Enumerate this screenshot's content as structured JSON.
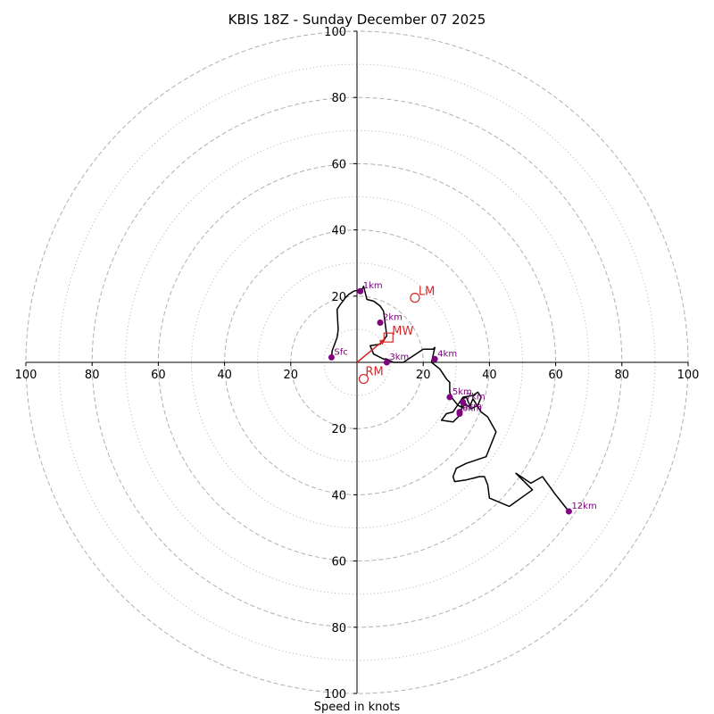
{
  "chart_data": {
    "type": "hodograph",
    "title": "KBIS 18Z - Sunday December 07 2025",
    "xlabel": "Speed in knots",
    "range": 100,
    "ring_major": [
      20,
      40,
      60,
      80,
      100
    ],
    "ring_minor": [
      10,
      30,
      50,
      70,
      90
    ],
    "axis_ticks": {
      "x": [
        {
          "pos": -100,
          "label": "100"
        },
        {
          "pos": -80,
          "label": "80"
        },
        {
          "pos": -60,
          "label": "60"
        },
        {
          "pos": -40,
          "label": "40"
        },
        {
          "pos": -20,
          "label": "20"
        },
        {
          "pos": 20,
          "label": "20"
        },
        {
          "pos": 40,
          "label": "40"
        },
        {
          "pos": 60,
          "label": "60"
        },
        {
          "pos": 80,
          "label": "80"
        },
        {
          "pos": 100,
          "label": "100"
        }
      ],
      "y": [
        {
          "pos": 100,
          "label": "100"
        },
        {
          "pos": 80,
          "label": "80"
        },
        {
          "pos": 60,
          "label": "60"
        },
        {
          "pos": 40,
          "label": "40"
        },
        {
          "pos": 20,
          "label": "20"
        },
        {
          "pos": -20,
          "label": "20"
        },
        {
          "pos": -40,
          "label": "40"
        },
        {
          "pos": -60,
          "label": "60"
        },
        {
          "pos": -80,
          "label": "80"
        },
        {
          "pos": -100,
          "label": "100"
        }
      ]
    },
    "trace": {
      "u": [
        -7.7,
        -7.5,
        -6.0,
        -5.8,
        -5.7,
        -6.0,
        -5.0,
        -3.5,
        -2.5,
        -1.0,
        1.5,
        2.0,
        3.0,
        5.0,
        7.0,
        8.0,
        9.0,
        7.0,
        4.0,
        5.0,
        7.0,
        8.0,
        9.0,
        11.0,
        14.0,
        17.0,
        20.0,
        23.0,
        23.5,
        22.5,
        25.0,
        27.0,
        28.0,
        28.0,
        28.5,
        30.5,
        31.5,
        32.0,
        33.0,
        34.5,
        36.5,
        37.5,
        36.5,
        35.0,
        32.0,
        31.0,
        29.0,
        27.0,
        25.5,
        29.0,
        30.0,
        31.5,
        31.0,
        32.5,
        34.0,
        35.0,
        37.5,
        39.5,
        42.0,
        39.0,
        33.0,
        30.0,
        29.0,
        29.5,
        33.0,
        35.0,
        37.0,
        38.5,
        39.5,
        40.0,
        46.0,
        53.0,
        48.0,
        52.5,
        56.0,
        60.0,
        64.0
      ],
      "v": [
        1.5,
        3.5,
        7.5,
        9.0,
        10.0,
        16.0,
        17.5,
        19.5,
        20.5,
        21.5,
        22.0,
        23.0,
        19.0,
        18.5,
        17.0,
        15.5,
        8.0,
        5.5,
        5.0,
        2.5,
        1.5,
        1.0,
        1.0,
        0.0,
        0.0,
        2.0,
        4.0,
        4.0,
        4.5,
        0.0,
        -2.0,
        -5.0,
        -6.0,
        -9.0,
        -10.5,
        -13.0,
        -13.5,
        -11.0,
        -10.5,
        -14.0,
        -13.0,
        -10.5,
        -9.0,
        -10.0,
        -10.5,
        -12.0,
        -15.0,
        -15.5,
        -17.5,
        -18.0,
        -17.0,
        -15.5,
        -15.0,
        -12.5,
        -13.5,
        -11.0,
        -15.0,
        -16.5,
        -21.0,
        -28.5,
        -30.5,
        -32.0,
        -34.5,
        -36.0,
        -35.5,
        -35.0,
        -34.5,
        -34.5,
        -37.0,
        -41.0,
        -43.5,
        -38.5,
        -33.5,
        -36.5,
        -34.5,
        -40.0,
        -45.0
      ]
    },
    "height_markers": [
      {
        "label": "Sfc",
        "u": -7.7,
        "v": 1.5
      },
      {
        "label": "1km",
        "u": 1.0,
        "v": 21.5
      },
      {
        "label": "2km",
        "u": 7.0,
        "v": 12.0
      },
      {
        "label": "3km",
        "u": 9.0,
        "v": 0.0
      },
      {
        "label": "4km",
        "u": 23.5,
        "v": 1.0
      },
      {
        "label": "5km",
        "u": 28.0,
        "v": -10.5
      },
      {
        "label": "6km",
        "u": 31.0,
        "v": -15.5
      },
      {
        "label": "7km",
        "u": 32.0,
        "v": -12.0
      },
      {
        "label": "8km",
        "u": 31.0,
        "v": -15.0
      },
      {
        "label": "12km",
        "u": 64.0,
        "v": -45.0
      }
    ],
    "bunkers": {
      "LM": {
        "label": "LM",
        "u": 17.5,
        "v": 19.5
      },
      "RM": {
        "label": "RM",
        "u": 2.0,
        "v": -5.0
      },
      "MW": {
        "label": "MW",
        "u": 9.5,
        "v": 7.5
      }
    },
    "mean_wind_vector": {
      "u": 8.5,
      "v": 7.0
    },
    "colors": {
      "trace": "#000000",
      "marker": "#800080",
      "storm": "#d62728",
      "ring": "#b0b0b0",
      "axis": "#000000"
    }
  }
}
